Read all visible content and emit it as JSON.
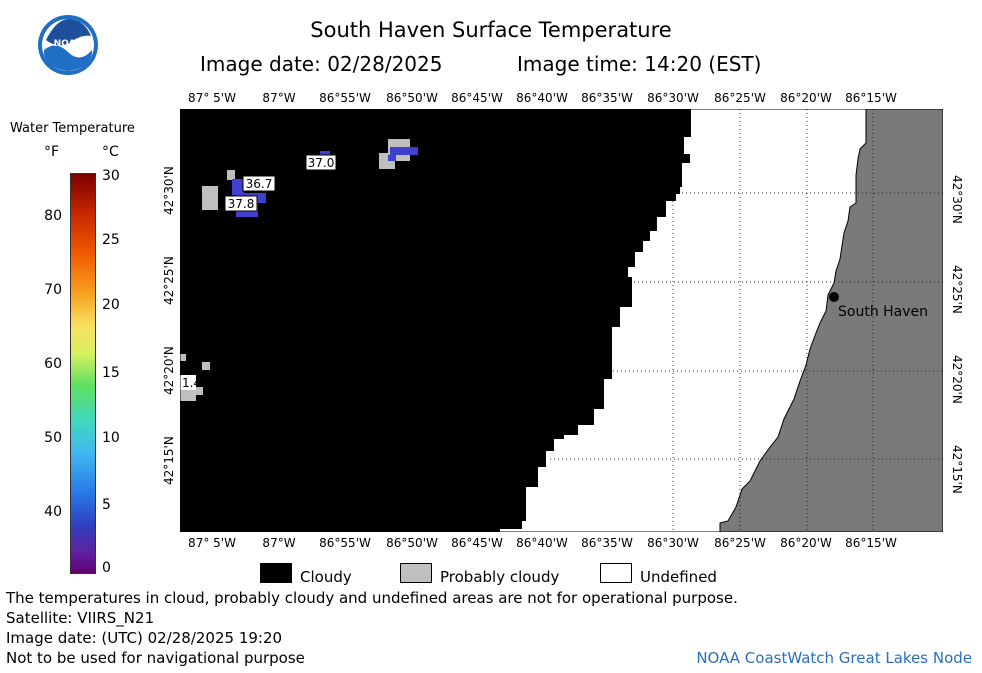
{
  "header": {
    "title": "South Haven Surface Temperature",
    "image_date": "Image date: 02/28/2025",
    "image_time": "Image time: 14:20 (EST)"
  },
  "logo": {
    "icon": "noaa-logo-icon",
    "text": "NOAA"
  },
  "colorbar": {
    "title": "Water Temperature",
    "unit_f": "°F",
    "unit_c": "°C",
    "f_ticks": [
      "80",
      "70",
      "60",
      "50",
      "40"
    ],
    "c_ticks": [
      "30",
      "25",
      "20",
      "15",
      "10",
      "5",
      "0"
    ]
  },
  "map": {
    "lon_labels": [
      "87° 5'W",
      "87°W",
      "86°55'W",
      "86°50'W",
      "86°45'W",
      "86°40'W",
      "86°35'W",
      "86°30'W",
      "86°25'W",
      "86°20'W",
      "86°15'W"
    ],
    "lat_labels": [
      "42°30'N",
      "42°25'N",
      "42°20'N",
      "42°15'N"
    ],
    "temp_labels": [
      "37.0",
      "36.7",
      "37.8",
      "1.4"
    ],
    "city": "South Haven",
    "colors": {
      "cloudy": "#000000",
      "probably_cloudy": "#bfbfbf",
      "undefined": "#ffffff",
      "land": "#7a7a7a",
      "water_cold": "#3f3fd0"
    }
  },
  "legend": {
    "cloudy": "Cloudy",
    "probably_cloudy": "Probably cloudy",
    "undefined": "Undefined"
  },
  "footer": {
    "disclaimer": "The temperatures in cloud, probably cloudy and undefined areas are not for operational purpose.",
    "satellite": "Satellite: VIIRS_N21",
    "utc_date": "Image date: (UTC) 02/28/2025  19:20",
    "nav": "Not to be used for navigational purpose",
    "credit": "NOAA CoastWatch Great Lakes Node"
  }
}
